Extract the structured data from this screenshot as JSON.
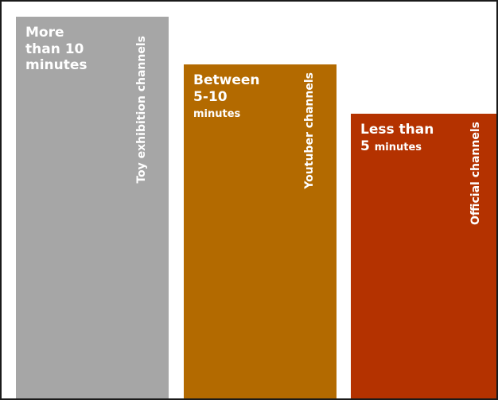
{
  "colors": {
    "bar_1": "#a6a6a6",
    "bar_2": "#b36a00",
    "bar_3": "#b43200",
    "border": "#1a1a1a",
    "text": "#ffffff"
  },
  "bars": [
    {
      "lines": [
        "More",
        "than 10",
        "minutes"
      ],
      "channel": "Toy exhibition channels"
    },
    {
      "lines": [
        "Between",
        "5-10",
        "minutes"
      ],
      "channel": "Youtuber channels"
    },
    {
      "lines": [
        "Less than",
        "5 minutes"
      ],
      "channel": "Official channels"
    }
  ]
}
